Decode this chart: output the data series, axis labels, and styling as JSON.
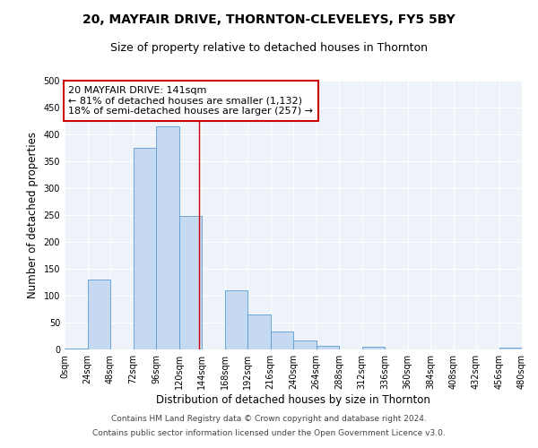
{
  "title": "20, MAYFAIR DRIVE, THORNTON-CLEVELEYS, FY5 5BY",
  "subtitle": "Size of property relative to detached houses in Thornton",
  "xlabel": "Distribution of detached houses by size in Thornton",
  "ylabel": "Number of detached properties",
  "bin_edges": [
    0,
    24,
    48,
    72,
    96,
    120,
    144,
    168,
    192,
    216,
    240,
    264,
    288,
    312,
    336,
    360,
    384,
    408,
    432,
    456,
    480
  ],
  "bar_heights": [
    2,
    130,
    0,
    375,
    415,
    248,
    0,
    110,
    65,
    33,
    17,
    6,
    0,
    5,
    0,
    0,
    0,
    0,
    0,
    3
  ],
  "bar_color": "#c5d9f0",
  "bar_edge_color": "#5b9bd5",
  "vline_x": 141,
  "vline_color": "#cc0000",
  "annotation_line1": "20 MAYFAIR DRIVE: 141sqm",
  "annotation_line2": "← 81% of detached houses are smaller (1,132)",
  "annotation_line3": "18% of semi-detached houses are larger (257) →",
  "annotation_box_color": "#ffffff",
  "annotation_box_edge_color": "#cc0000",
  "ylim": [
    0,
    500
  ],
  "yticks": [
    0,
    50,
    100,
    150,
    200,
    250,
    300,
    350,
    400,
    450,
    500
  ],
  "tick_labels": [
    "0sqm",
    "24sqm",
    "48sqm",
    "72sqm",
    "96sqm",
    "120sqm",
    "144sqm",
    "168sqm",
    "192sqm",
    "216sqm",
    "240sqm",
    "264sqm",
    "288sqm",
    "312sqm",
    "336sqm",
    "360sqm",
    "384sqm",
    "408sqm",
    "432sqm",
    "456sqm",
    "480sqm"
  ],
  "footer_line1": "Contains HM Land Registry data © Crown copyright and database right 2024.",
  "footer_line2": "Contains public sector information licensed under the Open Government Licence v3.0.",
  "bg_color": "#eef3fa",
  "fig_bg_color": "#ffffff",
  "title_fontsize": 10,
  "subtitle_fontsize": 9,
  "axis_label_fontsize": 8.5,
  "tick_fontsize": 7,
  "footer_fontsize": 6.5,
  "annotation_fontsize": 8
}
